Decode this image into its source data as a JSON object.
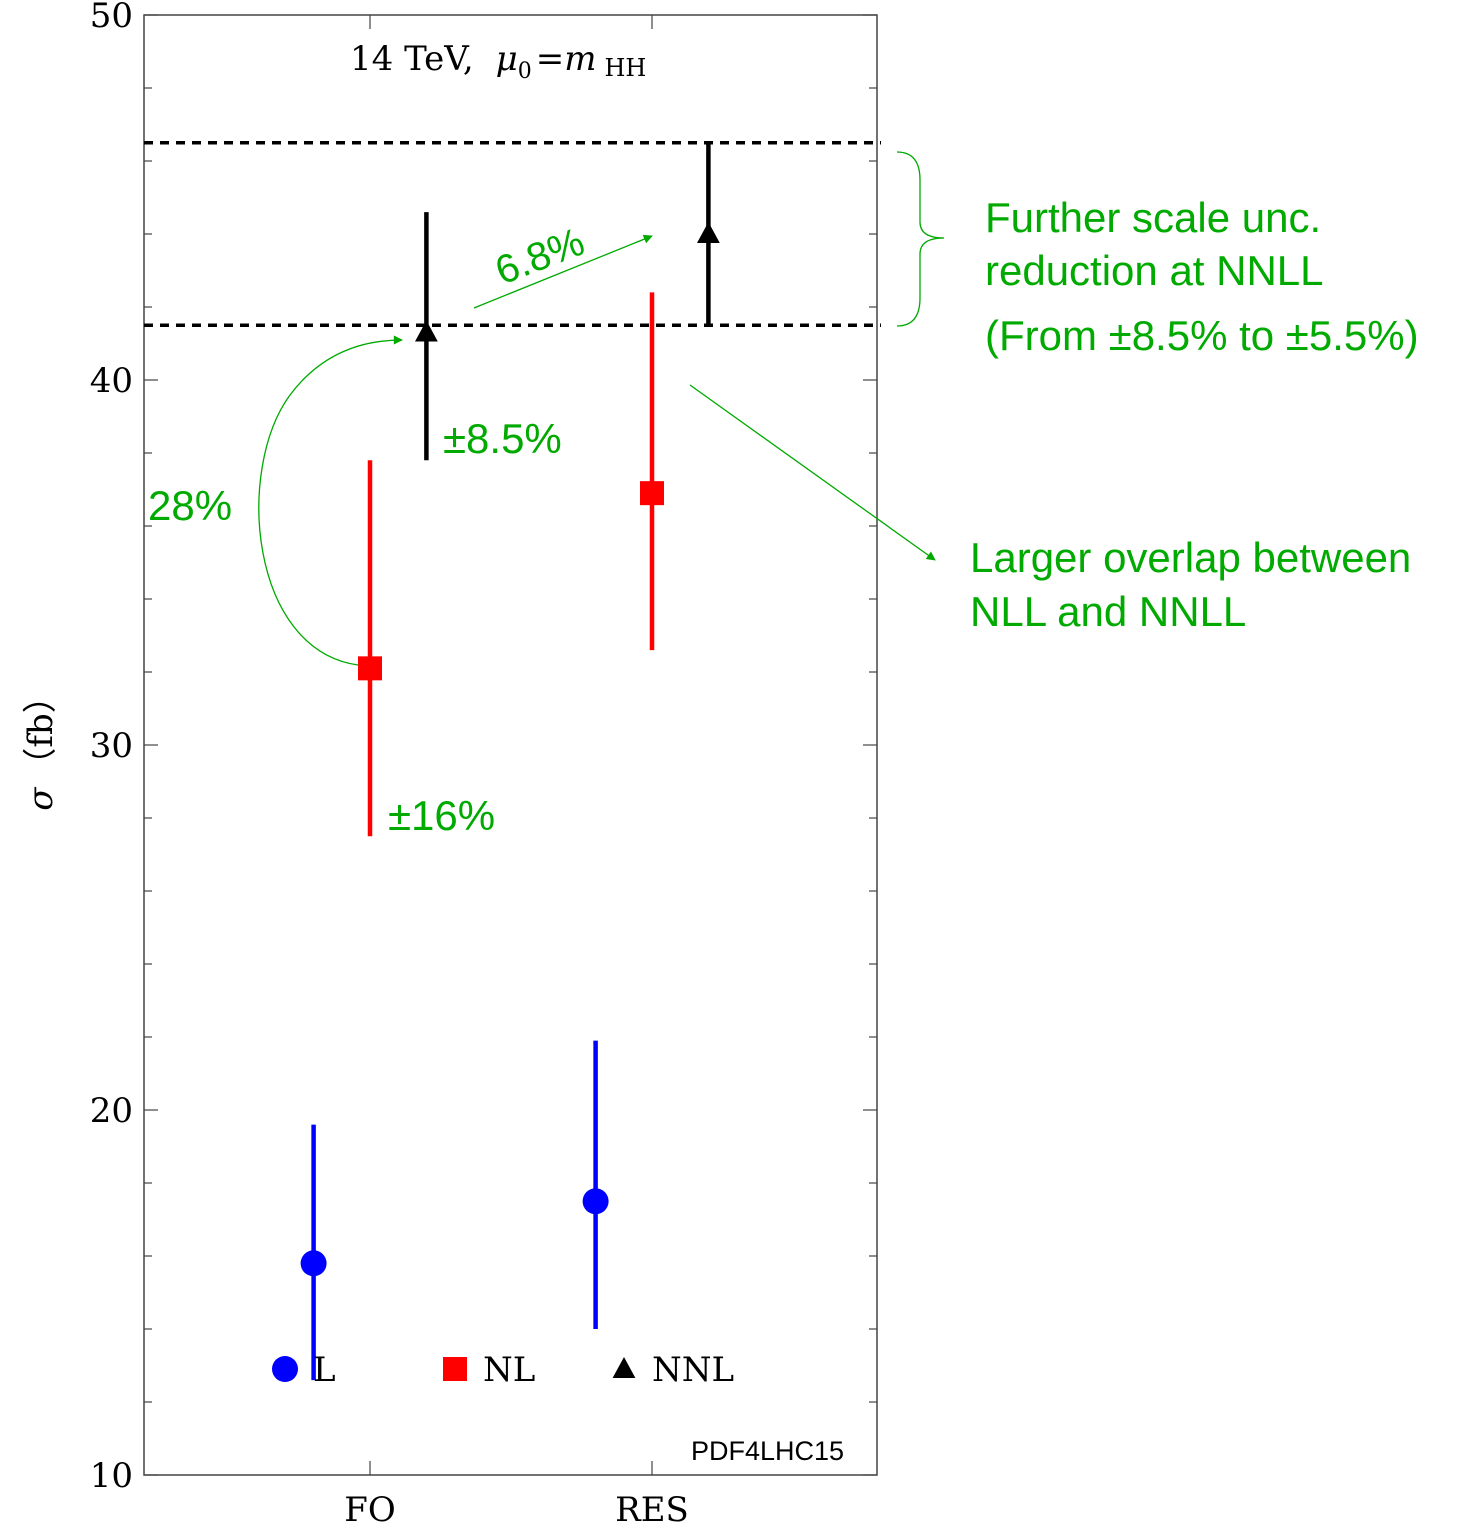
{
  "chart_data": {
    "type": "scatter",
    "title": "14 TeV,  μ0 = m HH",
    "title_parts": {
      "energy": "14 TeV,",
      "mu": "μ",
      "mu_sub": "0",
      "eq": "=m",
      "m_sub": "HH"
    },
    "xlabel": "",
    "ylabel": "σ（fb）",
    "ylabel_parts": {
      "sigma": "σ",
      "unit": "（fb）"
    },
    "categories": [
      "FO",
      "RES"
    ],
    "ylim": [
      10,
      50
    ],
    "yticks": [
      10,
      20,
      30,
      40,
      50
    ],
    "ytick_labels": [
      "10",
      "20",
      "30",
      "40",
      "50"
    ],
    "minor_step": 2,
    "series": [
      {
        "name": "L",
        "marker": "circle",
        "color": "#0000ff",
        "offset": -0.2,
        "values": [
          15.8,
          17.5
        ],
        "err_low": [
          12.6,
          14.0
        ],
        "err_high": [
          19.6,
          21.9
        ]
      },
      {
        "name": "NL",
        "marker": "square",
        "color": "#ff0000",
        "offset": 0.0,
        "values": [
          32.1,
          36.9
        ],
        "err_low": [
          27.5,
          32.6
        ],
        "err_high": [
          37.8,
          42.4
        ]
      },
      {
        "name": "NNL",
        "marker": "triangle",
        "color": "#000000",
        "offset": 0.2,
        "values": [
          41.3,
          44.0
        ],
        "err_low": [
          37.8,
          41.5
        ],
        "err_high": [
          44.6,
          46.5
        ]
      }
    ],
    "reference_lines": [
      46.5,
      41.5
    ],
    "grid": false,
    "legend_position": "bottom-inside",
    "source_note": "PDF4LHC15",
    "annotations": {
      "nl_fo_unc": "±16%",
      "nnl_fo_unc": "±8.5%",
      "nl_to_nnl": "28%",
      "fo_to_res": "6.8%",
      "brace_note": [
        "Further scale unc.",
        "reduction at NNLL",
        "(From ±8.5% to ±5.5%)"
      ],
      "overlap_note": [
        "Larger overlap between",
        "NLL and NNLL"
      ]
    },
    "annotation_color": "#00aa00"
  }
}
